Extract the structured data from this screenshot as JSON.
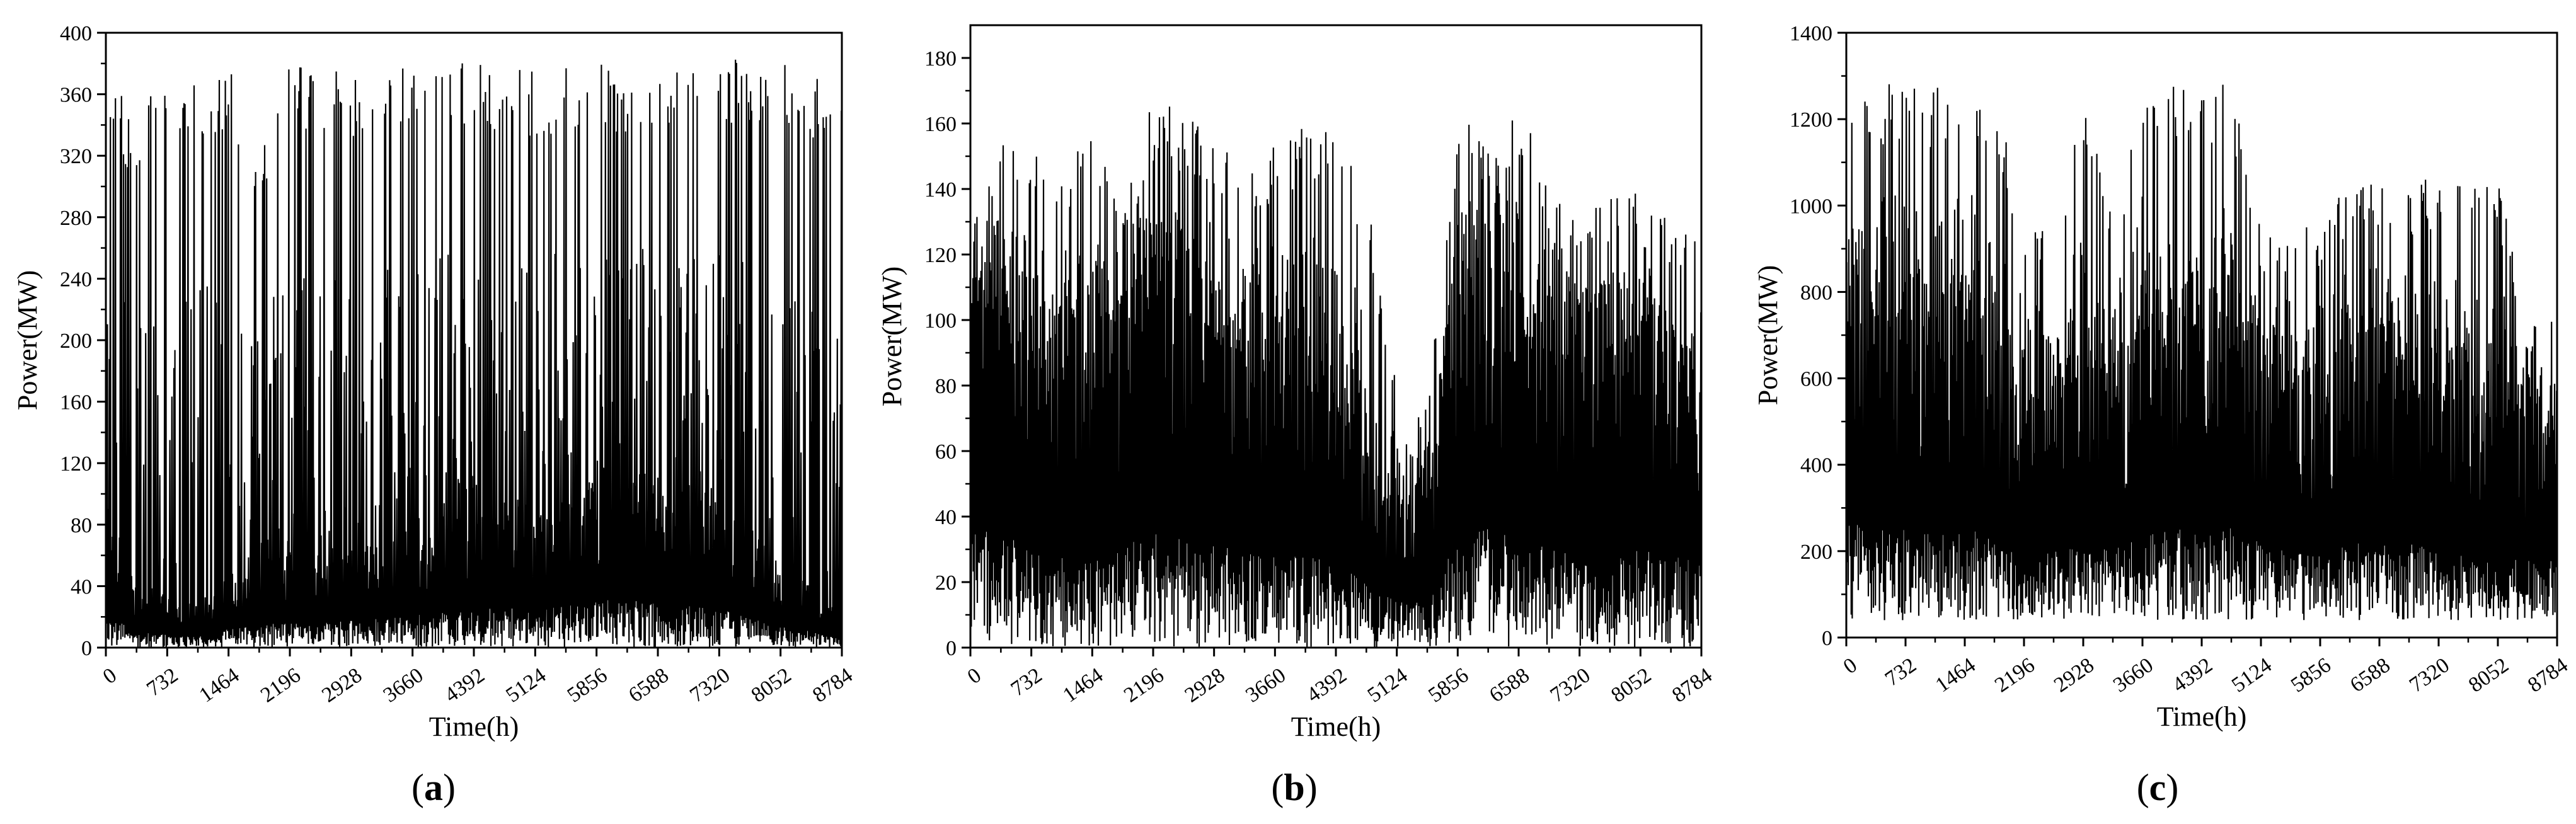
{
  "chart_data": [
    {
      "type": "line",
      "panel_label": "a",
      "xlabel": "Time(h)",
      "ylabel": "Power(MW)",
      "xlim": [
        0,
        8784
      ],
      "ylim": [
        0,
        400
      ],
      "x_ticks": [
        0,
        732,
        1464,
        2196,
        2928,
        3660,
        4392,
        5124,
        5856,
        6588,
        7320,
        8052,
        8784
      ],
      "y_ticks": [
        0,
        40,
        80,
        120,
        160,
        200,
        240,
        280,
        320,
        360,
        400
      ],
      "x_tick_labels": [
        "0",
        "732",
        "1464",
        "2196",
        "2928",
        "3660",
        "4392",
        "5124",
        "5856",
        "6588",
        "7320",
        "8052",
        "8784"
      ],
      "y_tick_labels": [
        "0",
        "40",
        "80",
        "120",
        "160",
        "200",
        "240",
        "280",
        "320",
        "360",
        "400"
      ],
      "series": [
        {
          "x": [
            0,
            366,
            732,
            1098,
            1464,
            1830,
            2196,
            2562,
            2928,
            3294,
            3660,
            4026,
            4392,
            4758,
            5124,
            5490,
            5856,
            6222,
            6588,
            6954,
            7320,
            7686,
            8052,
            8418,
            8784
          ],
          "max": [
            375,
            345,
            380,
            380,
            380,
            330,
            382,
            378,
            378,
            380,
            383,
            383,
            385,
            380,
            378,
            378,
            380,
            380,
            382,
            383,
            383,
            384,
            382,
            375,
            372
          ],
          "min": [
            0,
            0,
            0,
            0,
            0,
            0,
            0,
            0,
            0,
            0,
            0,
            0,
            0,
            0,
            0,
            0,
            0,
            0,
            0,
            0,
            0,
            0,
            0,
            0,
            0
          ],
          "typical": [
            60,
            30,
            25,
            20,
            35,
            40,
            50,
            45,
            50,
            55,
            60,
            65,
            70,
            75,
            70,
            80,
            90,
            85,
            90,
            80,
            75,
            60,
            40,
            30,
            20
          ]
        }
      ]
    },
    {
      "type": "line",
      "panel_label": "b",
      "xlabel": "Time(h)",
      "ylabel": "Power(MW)",
      "xlim": [
        0,
        8784
      ],
      "ylim": [
        0,
        190
      ],
      "x_ticks": [
        0,
        732,
        1464,
        2196,
        2928,
        3660,
        4392,
        5124,
        5856,
        6588,
        7320,
        8052,
        8784
      ],
      "y_ticks": [
        0,
        20,
        40,
        60,
        80,
        100,
        120,
        140,
        160,
        180
      ],
      "x_tick_labels": [
        "0",
        "732",
        "1464",
        "2196",
        "2928",
        "3660",
        "4392",
        "5124",
        "5856",
        "6588",
        "7320",
        "8052",
        "8784"
      ],
      "y_tick_labels": [
        "0",
        "20",
        "40",
        "60",
        "80",
        "100",
        "120",
        "140",
        "160",
        "180"
      ],
      "series": [
        {
          "x": [
            0,
            366,
            732,
            1098,
            1464,
            1830,
            2196,
            2562,
            2928,
            3294,
            3660,
            4026,
            4392,
            4758,
            5124,
            5490,
            5856,
            6222,
            6588,
            6954,
            7320,
            7686,
            8052,
            8418,
            8784
          ],
          "max": [
            125,
            155,
            150,
            150,
            155,
            140,
            168,
            165,
            160,
            145,
            155,
            160,
            162,
            140,
            80,
            75,
            160,
            162,
            168,
            140,
            135,
            140,
            140,
            130,
            125
          ],
          "min": [
            0,
            0,
            0,
            0,
            0,
            0,
            0,
            0,
            0,
            0,
            0,
            0,
            0,
            0,
            0,
            0,
            0,
            0,
            0,
            0,
            0,
            0,
            0,
            0,
            0
          ],
          "typical": [
            110,
            100,
            85,
            80,
            85,
            90,
            100,
            95,
            90,
            85,
            80,
            80,
            75,
            55,
            40,
            45,
            100,
            105,
            95,
            90,
            80,
            80,
            85,
            80,
            75
          ]
        }
      ]
    },
    {
      "type": "line",
      "panel_label": "c",
      "xlabel": "Time(h)",
      "ylabel": "Power(MW)",
      "xlim": [
        0,
        8784
      ],
      "ylim": [
        0,
        1400
      ],
      "x_ticks": [
        0,
        732,
        1464,
        2196,
        2928,
        3660,
        4392,
        5124,
        5856,
        6588,
        7320,
        8052,
        8784
      ],
      "y_ticks": [
        0,
        200,
        400,
        600,
        800,
        1000,
        1200,
        1400
      ],
      "x_tick_labels": [
        "0",
        "732",
        "1464",
        "2196",
        "2928",
        "3660",
        "4392",
        "5124",
        "5856",
        "6588",
        "7320",
        "8052",
        "8784"
      ],
      "y_tick_labels": [
        "0",
        "200",
        "400",
        "600",
        "800",
        "1000",
        "1200",
        "1400"
      ],
      "series": [
        {
          "x": [
            0,
            366,
            732,
            1098,
            1464,
            1830,
            2196,
            2562,
            2928,
            3294,
            3660,
            4026,
            4392,
            4758,
            5124,
            5490,
            5856,
            6222,
            6588,
            6954,
            7320,
            7686,
            8052,
            8418,
            8784
          ],
          "max": [
            1282,
            1282,
            1282,
            1282,
            1282,
            1282,
            962,
            962,
            1282,
            962,
            1282,
            1282,
            1282,
            1282,
            962,
            962,
            962,
            1060,
            1060,
            1060,
            1060,
            1060,
            1060,
            740,
            740
          ],
          "min": [
            40,
            40,
            40,
            40,
            40,
            40,
            40,
            40,
            40,
            40,
            40,
            40,
            40,
            40,
            40,
            40,
            40,
            40,
            40,
            40,
            40,
            40,
            40,
            40,
            40
          ],
          "typical": [
            700,
            650,
            650,
            650,
            650,
            600,
            500,
            500,
            550,
            500,
            650,
            650,
            650,
            650,
            550,
            550,
            500,
            550,
            550,
            550,
            500,
            500,
            500,
            450,
            450
          ]
        }
      ]
    }
  ]
}
